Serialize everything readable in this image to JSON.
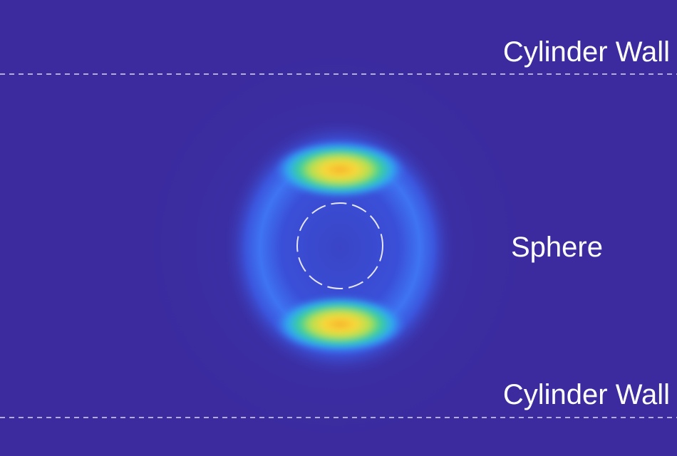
{
  "labels": {
    "top_wall": "Cylinder Wall",
    "sphere": "Sphere",
    "bottom_wall": "Cylinder Wall"
  }
}
